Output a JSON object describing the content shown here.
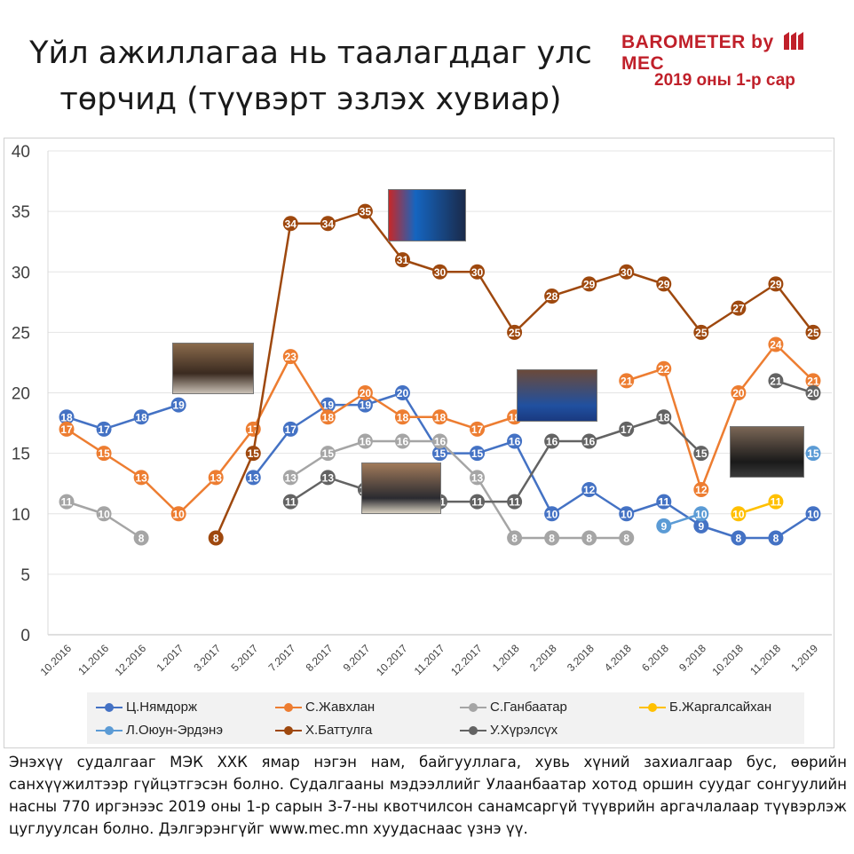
{
  "header": {
    "title_line1": "Үйл ажиллагаа нь таалагддаг улс",
    "title_line2": "төрчид (түүвэрт эзлэх хувиар)",
    "brand_left": "BAROMETER by",
    "brand_right": "MEC",
    "date": "2019 оны 1-р сар"
  },
  "colors": {
    "nyamdorj": "#4472c4",
    "javkhlan": "#ed7d31",
    "ganbaatar": "#a5a5a5",
    "jargalsaikhan": "#ffc000",
    "oyun_erdene": "#5b9bd5",
    "battulga": "#9e480e",
    "khurelsukh": "#636363",
    "brand": "#c0202a"
  },
  "chart_data": {
    "type": "line",
    "ylim": [
      0,
      40
    ],
    "yticks": [
      0,
      5,
      10,
      15,
      20,
      25,
      30,
      35,
      40
    ],
    "categories": [
      "10.2016",
      "11.2016",
      "12.2016",
      "1.2017",
      "3.2017",
      "5.2017",
      "7.2017",
      "8.2017",
      "9.2017",
      "10.2017",
      "11.2017",
      "12.2017",
      "1.2018",
      "2.2018",
      "3.2018",
      "4.2018",
      "6.2018",
      "9.2018",
      "10.2018",
      "11.2018",
      "1.2019"
    ],
    "series": [
      {
        "name": "Ц.Нямдорж",
        "key": "nyamdorj",
        "values": [
          18,
          17,
          18,
          19,
          null,
          13,
          17,
          19,
          19,
          20,
          15,
          15,
          16,
          10,
          12,
          10,
          11,
          9,
          8,
          8,
          10
        ]
      },
      {
        "name": "С.Жавхлан",
        "key": "javkhlan",
        "values": [
          17,
          15,
          13,
          10,
          13,
          17,
          23,
          18,
          20,
          18,
          18,
          17,
          18,
          null,
          null,
          21,
          22,
          12,
          20,
          24,
          21
        ]
      },
      {
        "name": "С.Ганбаатар",
        "key": "ganbaatar",
        "values": [
          11,
          10,
          8,
          null,
          null,
          null,
          13,
          15,
          16,
          16,
          16,
          13,
          8,
          8,
          8,
          8,
          null,
          null,
          null,
          null,
          null
        ]
      },
      {
        "name": "Б.Жаргалсайхан",
        "key": "jargalsaikhan",
        "values": [
          null,
          null,
          null,
          null,
          null,
          null,
          null,
          null,
          null,
          null,
          null,
          null,
          null,
          null,
          null,
          null,
          null,
          null,
          10,
          11,
          null
        ]
      },
      {
        "name": "Л.Оюун-Эрдэнэ",
        "key": "oyun_erdene",
        "values": [
          null,
          null,
          null,
          null,
          null,
          null,
          null,
          null,
          null,
          null,
          null,
          null,
          null,
          null,
          null,
          null,
          9,
          10,
          null,
          null,
          15
        ]
      },
      {
        "name": "Х.Баттулга",
        "key": "battulga",
        "values": [
          null,
          null,
          null,
          null,
          8,
          15,
          34,
          34,
          35,
          31,
          30,
          30,
          25,
          28,
          29,
          30,
          29,
          25,
          27,
          29,
          25
        ]
      },
      {
        "name": "У.Хүрэлсүх",
        "key": "khurelsukh",
        "values": [
          null,
          null,
          null,
          null,
          null,
          null,
          11,
          13,
          12,
          null,
          11,
          11,
          11,
          16,
          16,
          17,
          18,
          15,
          null,
          21,
          20
        ]
      }
    ]
  },
  "legend": [
    {
      "label": "Ц.Нямдорж",
      "color": "#4472c4"
    },
    {
      "label": "С.Жавхлан",
      "color": "#ed7d31"
    },
    {
      "label": "С.Ганбаатар",
      "color": "#a5a5a5"
    },
    {
      "label": "Б.Жаргалсайхан",
      "color": "#ffc000"
    },
    {
      "label": "Л.Оюун-Эрдэнэ",
      "color": "#5b9bd5"
    },
    {
      "label": "Х.Баттулга",
      "color": "#9e480e"
    },
    {
      "label": "У.Хүрэлсүх",
      "color": "#636363"
    }
  ],
  "note": "Энэхүү судалгааг МЭК ХХК ямар нэгэн нам, байгууллага, хувь хүний захиалгаар бус, өөрийн санхүүжилтээр гүйцэтгэсэн болно. Судалгааны мэдээллийг Улаанбаатар хотод оршин суудаг сонгуулийн насны 770 иргэнээс 2019 оны 1-р сарын 3-7-ны квотчилсон санамсаргүй түүврийн аргачлалаар түүвэрлэж цуглуулсан болно. Дэлгэрэнгүйг www.mec.mn хуудаснаас үзнэ үү."
}
